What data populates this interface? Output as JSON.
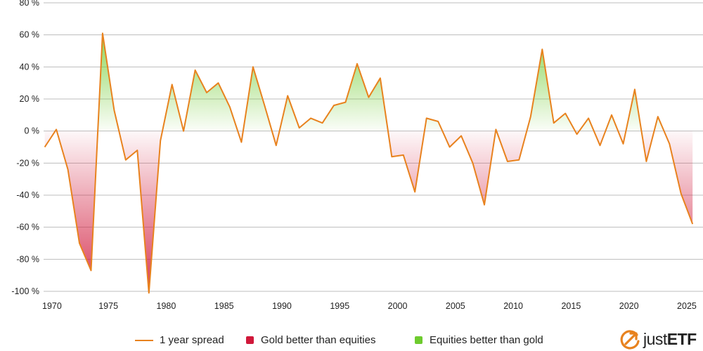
{
  "chart_data": {
    "type": "area",
    "x_ticks": [
      "1970",
      "1975",
      "1980",
      "1985",
      "1990",
      "1995",
      "2000",
      "2005",
      "2010",
      "2015",
      "2020",
      "2025"
    ],
    "y_ticks": [
      "80 %",
      "60 %",
      "40 %",
      "20 %",
      "0 %",
      "-20 %",
      "-40 %",
      "-60 %",
      "-80 %",
      "-100 %"
    ],
    "xlim": [
      1969.4,
      2026.4
    ],
    "ylim": [
      -100,
      80
    ],
    "grid": true,
    "legend_position": "bottom",
    "series": [
      {
        "name": "1 year spread",
        "x": [
          1969.5,
          1970.5,
          1971.5,
          1972.5,
          1973.5,
          1974.5,
          1975.5,
          1976.5,
          1977.5,
          1978.5,
          1979.5,
          1980.5,
          1981.5,
          1982.5,
          1983.5,
          1984.5,
          1985.5,
          1986.5,
          1987.5,
          1988.5,
          1989.5,
          1990.5,
          1991.5,
          1992.5,
          1993.5,
          1994.5,
          1995.5,
          1996.5,
          1997.5,
          1998.5,
          1999.5,
          2000.5,
          2001.5,
          2002.5,
          2003.5,
          2004.5,
          2005.5,
          2006.5,
          2007.5,
          2008.5,
          2009.5,
          2010.5,
          2011.5,
          2012.5,
          2013.5,
          2014.5,
          2015.5,
          2016.5,
          2017.5,
          2018.5,
          2019.5,
          2020.5,
          2021.5,
          2022.5,
          2023.5,
          2024.5,
          2025.5
        ],
        "values": [
          -10,
          1,
          -24,
          -70,
          -87,
          61,
          13,
          -18,
          -12,
          -101,
          -6,
          29,
          0,
          38,
          24,
          30,
          15,
          -7,
          40,
          16,
          -9,
          22,
          2,
          8,
          5,
          16,
          18,
          42,
          21,
          33,
          -16,
          -15,
          -38,
          8,
          6,
          -10,
          -3,
          -20,
          -46,
          1,
          -19,
          -18,
          9,
          51,
          5,
          11,
          -2,
          8,
          -9,
          10,
          -8,
          26,
          -19,
          9,
          -8,
          -39,
          -58
        ]
      }
    ],
    "legend": [
      {
        "label": "1 year spread",
        "kind": "line",
        "color": "#e8821e"
      },
      {
        "label": "Gold better than equities",
        "kind": "swatch",
        "color": "#d0183a"
      },
      {
        "label": "Equities better than gold",
        "kind": "swatch",
        "color": "#6ecb2e"
      }
    ],
    "colors": {
      "line": "#e8821e",
      "negative_fill": "#d0183a",
      "positive_fill": "#6ecb2e",
      "grid": "#bdbdbd"
    }
  },
  "logo": {
    "brand_part1": "just",
    "brand_part2": "ETF",
    "icon": "justetf-arrow-icon",
    "brand_color": "#e8821e"
  }
}
